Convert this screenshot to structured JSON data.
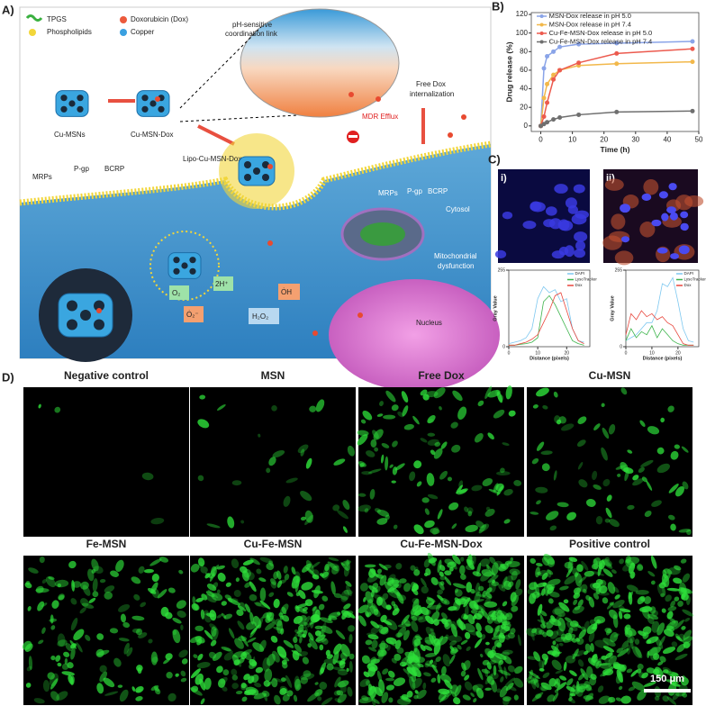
{
  "panel_a": {
    "label": "A)",
    "legend": [
      "TPGS",
      "Phospholipids",
      "Doxorubicin (Dox)",
      "Copper"
    ],
    "link": [
      "pH-sensitive",
      "coordination link"
    ],
    "particles": [
      "Cu-MSNs",
      "Cu-MSN-Dox",
      "Lipo-Cu-MSN-Dox"
    ],
    "free_dox": [
      "Free Dox",
      "internalization"
    ],
    "efflux": "MDR Efflux",
    "pumps_left": [
      "MRPs",
      "P-gp",
      "BCRP"
    ],
    "pumps_right": [
      "MRPs",
      "P-gp",
      "BCRP"
    ],
    "cytosol": "Cytosol",
    "mito": [
      "Mitochondrial",
      "dysfunction"
    ],
    "nucleus": "Nucleus",
    "ros": [
      "O₂",
      "Ȯ₂⁻",
      "2H⁺",
      "H₂O₂",
      "ȮH"
    ]
  },
  "chart_data": [
    {
      "type": "line",
      "panel_label": "B)",
      "x_label": "Time (h)",
      "y_label": "Drug release (%)",
      "x": [
        0,
        1,
        2,
        4,
        6,
        12,
        24,
        48
      ],
      "xlim": [
        -3,
        50
      ],
      "xticks": [
        0,
        10,
        20,
        30,
        40,
        50
      ],
      "ylim": [
        -6,
        122
      ],
      "yticks": [
        0,
        20,
        40,
        60,
        80,
        100,
        120
      ],
      "legend": "upper left",
      "markers": true,
      "series": [
        {
          "name": "MSN-Dox release in pH 5.0",
          "color": "#8aa4e8",
          "values": [
            0,
            62,
            75,
            80,
            85,
            88,
            89,
            91
          ]
        },
        {
          "name": "MSN-Dox release in pH 7.4",
          "color": "#f2b84b",
          "values": [
            0,
            30,
            45,
            55,
            60,
            65,
            67,
            69
          ]
        },
        {
          "name": "Cu-Fe-MSN-Dox release in pH 5.0",
          "color": "#ec5a4e",
          "values": [
            0,
            10,
            25,
            50,
            60,
            68,
            78,
            83
          ]
        },
        {
          "name": "Cu-Fe-MSN-Dox release in pH 7.4",
          "color": "#6f6f6f",
          "values": [
            0,
            2,
            4,
            7,
            9,
            12,
            15,
            16
          ]
        }
      ]
    },
    {
      "type": "line",
      "x_label": "Distance (pixels)",
      "y_label": "Gray Value",
      "x": [
        0,
        2,
        4,
        6,
        8,
        10,
        12,
        14,
        16,
        18,
        20,
        22,
        24,
        26
      ],
      "xlim": [
        0,
        28
      ],
      "xticks": [
        0,
        10,
        20
      ],
      "ylim": [
        0,
        255
      ],
      "yticks": [
        0,
        255
      ],
      "legend": "upper right",
      "markers": false,
      "series": [
        {
          "name": "DAPI",
          "color": "#7ec8f0",
          "values": [
            10,
            15,
            20,
            30,
            60,
            160,
            200,
            180,
            190,
            150,
            160,
            60,
            20,
            15
          ]
        },
        {
          "name": "LysoTracker",
          "color": "#3cb44b",
          "values": [
            5,
            5,
            8,
            10,
            15,
            30,
            150,
            170,
            140,
            100,
            60,
            20,
            10,
            5
          ]
        },
        {
          "name": "Dox",
          "color": "#e8463c",
          "values": [
            5,
            5,
            10,
            15,
            25,
            40,
            80,
            120,
            170,
            180,
            120,
            60,
            20,
            10
          ]
        }
      ]
    },
    {
      "type": "line",
      "x_label": "Distance (pixels)",
      "y_label": "Gray Value",
      "x": [
        0,
        2,
        4,
        6,
        8,
        10,
        12,
        14,
        16,
        18,
        20,
        22,
        24,
        26
      ],
      "xlim": [
        0,
        28
      ],
      "xticks": [
        0,
        10,
        20
      ],
      "ylim": [
        0,
        255
      ],
      "yticks": [
        0,
        255
      ],
      "legend": "upper right",
      "markers": false,
      "series": [
        {
          "name": "DAPI",
          "color": "#7ec8f0",
          "values": [
            20,
            30,
            40,
            60,
            80,
            80,
            120,
            210,
            200,
            230,
            150,
            60,
            20,
            15
          ]
        },
        {
          "name": "LysoTracker",
          "color": "#3cb44b",
          "values": [
            20,
            60,
            30,
            50,
            40,
            70,
            30,
            60,
            40,
            20,
            10,
            5,
            5,
            5
          ]
        },
        {
          "name": "Dox",
          "color": "#e8463c",
          "values": [
            40,
            110,
            90,
            120,
            100,
            110,
            90,
            100,
            80,
            70,
            40,
            10,
            5,
            5
          ]
        }
      ]
    }
  ],
  "panel_c": {
    "label": "C)",
    "images": [
      "i)",
      "ii)"
    ]
  },
  "panel_d": {
    "label": "D)",
    "tiles": [
      "Negative control",
      "MSN",
      "Free Dox",
      "Cu-MSN",
      "Fe-MSN",
      "Cu-Fe-MSN",
      "Cu-Fe-MSN-Dox",
      "Positive control"
    ],
    "scale_bar": "150 μm"
  }
}
